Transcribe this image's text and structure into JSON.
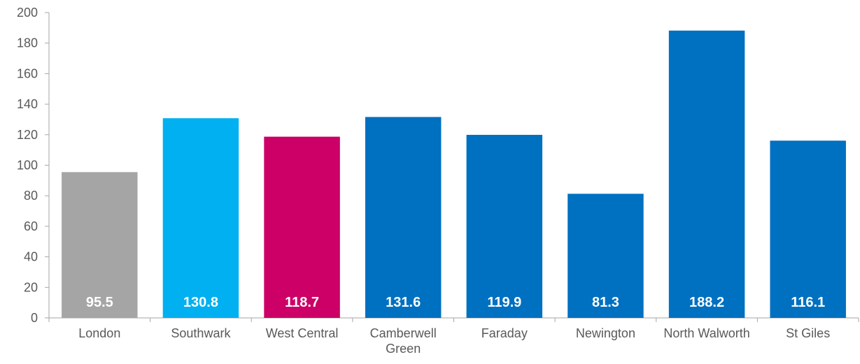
{
  "chart_data": {
    "type": "bar",
    "categories": [
      "London",
      "Southwark",
      "West Central",
      "Camberwell Green",
      "Faraday",
      "Newington",
      "North Walworth",
      "St Giles"
    ],
    "values": [
      95.5,
      130.8,
      118.7,
      131.6,
      119.9,
      81.3,
      188.2,
      116.1
    ],
    "colors": [
      "#a5a5a5",
      "#00b0f0",
      "#cc0066",
      "#0070c0",
      "#0070c0",
      "#0070c0",
      "#0070c0",
      "#0070c0"
    ],
    "ylim": [
      0,
      200
    ],
    "yticks": [
      0,
      20,
      40,
      60,
      80,
      100,
      120,
      140,
      160,
      180,
      200
    ],
    "grid": false
  }
}
